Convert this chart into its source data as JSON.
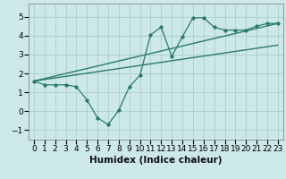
{
  "xlabel": "Humidex (Indice chaleur)",
  "xlim": [
    -0.5,
    23.5
  ],
  "ylim": [
    -1.5,
    5.7
  ],
  "yticks": [
    -1,
    0,
    1,
    2,
    3,
    4,
    5
  ],
  "xticks": [
    0,
    1,
    2,
    3,
    4,
    5,
    6,
    7,
    8,
    9,
    10,
    11,
    12,
    13,
    14,
    15,
    16,
    17,
    18,
    19,
    20,
    21,
    22,
    23
  ],
  "bg_color": "#cce8e8",
  "grid_color": "#aacece",
  "line_color": "#2a7a6a",
  "zigzag_x": [
    0,
    1,
    2,
    3,
    4,
    5,
    6,
    7,
    8,
    9,
    10,
    11,
    12,
    13,
    14,
    15,
    16,
    17,
    18,
    19,
    20,
    21,
    22,
    23
  ],
  "zigzag_y": [
    1.6,
    1.4,
    1.4,
    1.4,
    1.3,
    0.6,
    -0.35,
    -0.7,
    0.05,
    1.3,
    1.9,
    4.05,
    4.45,
    2.9,
    3.95,
    4.95,
    4.95,
    4.45,
    4.3,
    4.3,
    4.3,
    4.5,
    4.65,
    4.65
  ],
  "line1_x": [
    0,
    23
  ],
  "line1_y": [
    1.6,
    4.65
  ],
  "line2_x": [
    0,
    23
  ],
  "line2_y": [
    1.6,
    3.5
  ],
  "tick_fontsize": 6.5,
  "xlabel_fontsize": 7.5
}
